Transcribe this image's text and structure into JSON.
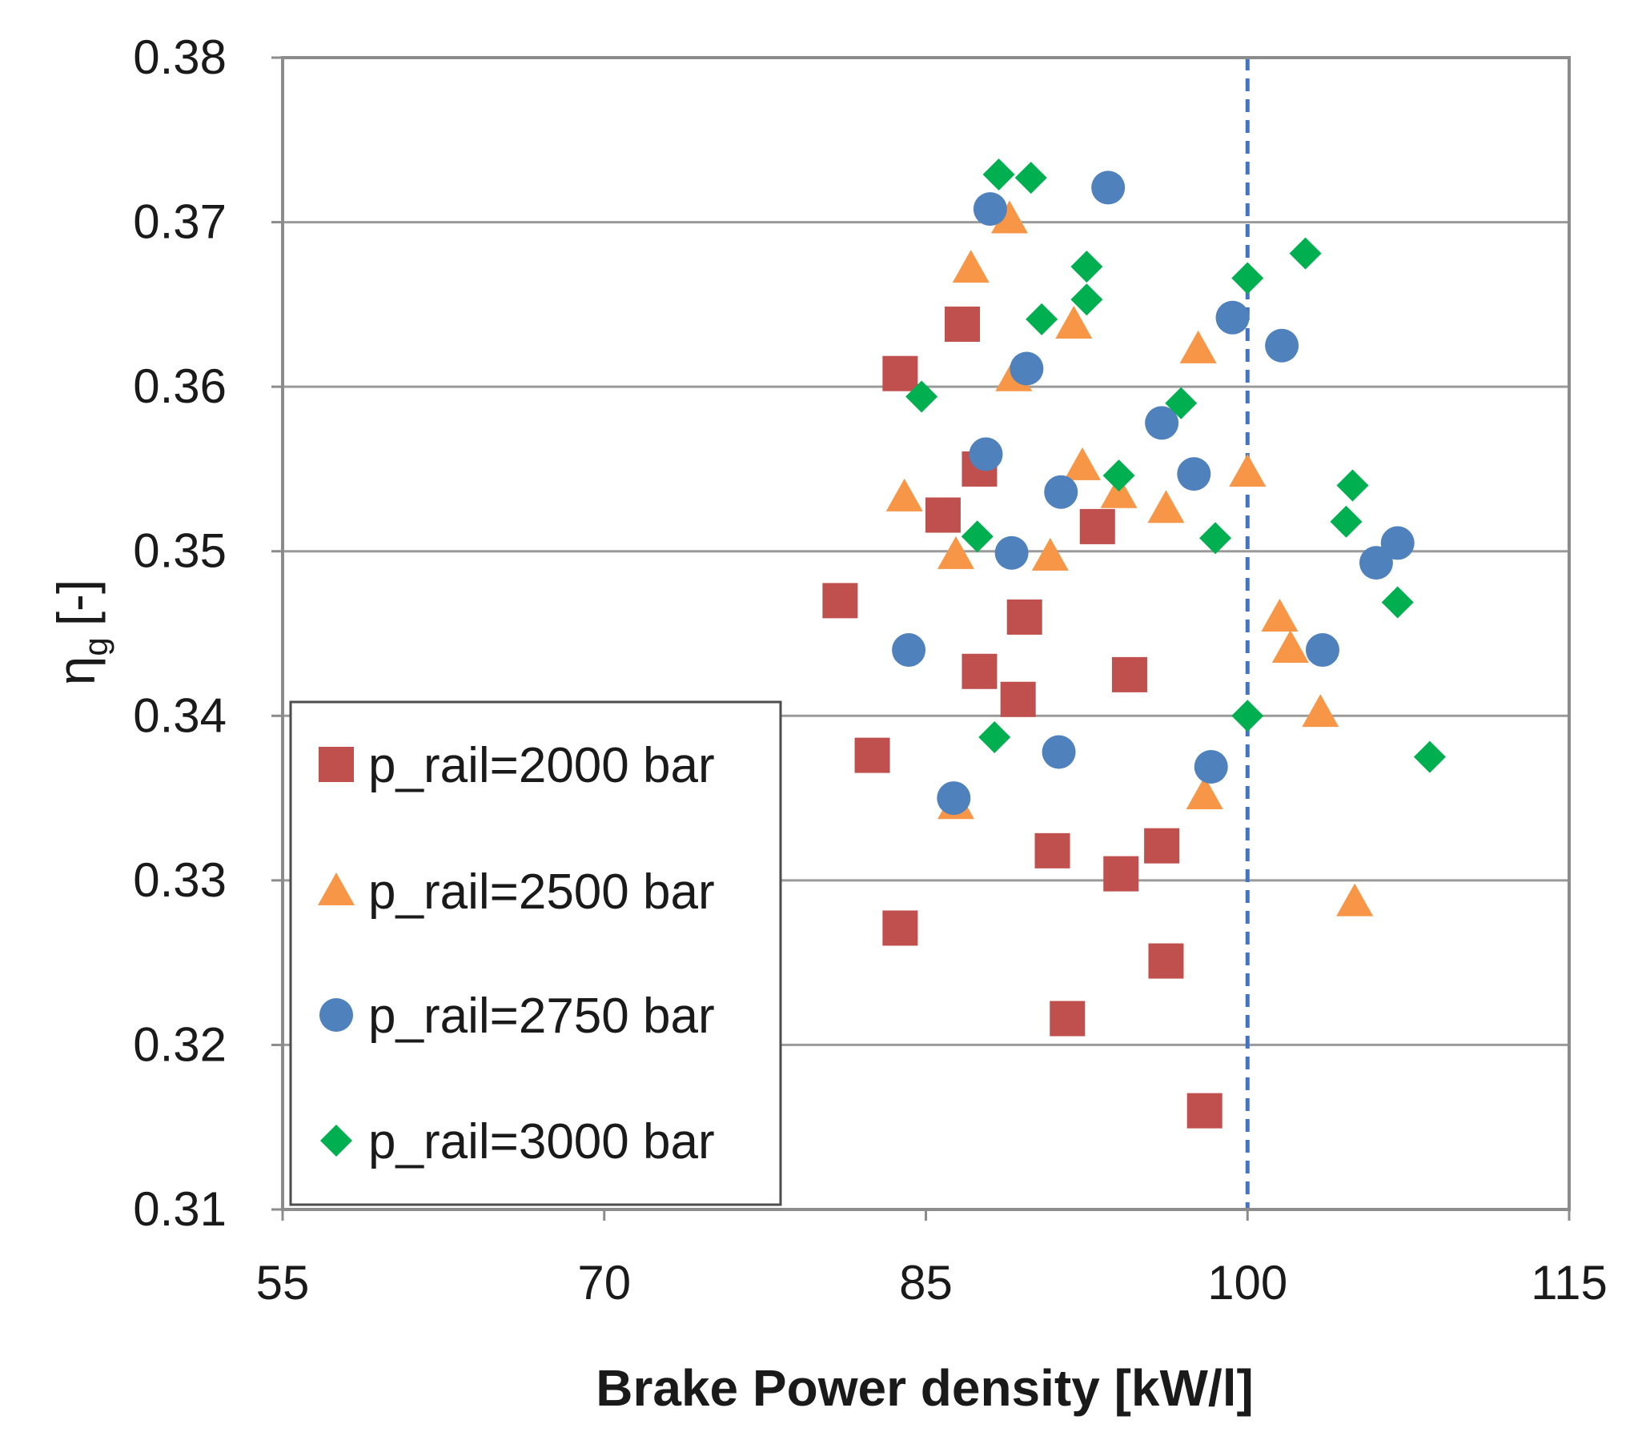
{
  "chart_data": {
    "type": "scatter",
    "title": "",
    "xlabel": "Brake Power density [kW/l]",
    "ylabel_symbol": "η",
    "ylabel_subscript": "g",
    "ylabel_unit": "[-]",
    "xlim": [
      55,
      115
    ],
    "ylim": [
      0.31,
      0.38
    ],
    "x_ticks": [
      55,
      70,
      85,
      100,
      115
    ],
    "x_tick_labels": [
      "55",
      "70",
      "85",
      "100",
      "115"
    ],
    "y_ticks": [
      0.31,
      0.32,
      0.33,
      0.34,
      0.35,
      0.36,
      0.37,
      0.38
    ],
    "y_tick_labels": [
      "0.31",
      "0.32",
      "0.33",
      "0.34",
      "0.35",
      "0.36",
      "0.37",
      "0.38"
    ],
    "grid": "horizontal",
    "legend_position": "bottom-left",
    "reference_line": {
      "orientation": "vertical",
      "x": 100,
      "style": "dashed",
      "color": "#4472c4"
    },
    "series": [
      {
        "name": "p_rail=2000 bar",
        "marker": "square",
        "color": "#c0504d",
        "points": [
          [
            86.7,
            0.3638
          ],
          [
            83.8,
            0.3608
          ],
          [
            87.5,
            0.355
          ],
          [
            85.8,
            0.3522
          ],
          [
            93.0,
            0.3515
          ],
          [
            81.0,
            0.347
          ],
          [
            89.6,
            0.346
          ],
          [
            87.5,
            0.3427
          ],
          [
            89.3,
            0.341
          ],
          [
            94.5,
            0.3425
          ],
          [
            82.5,
            0.3376
          ],
          [
            90.9,
            0.3318
          ],
          [
            94.1,
            0.3304
          ],
          [
            96.0,
            0.3321
          ],
          [
            83.8,
            0.3271
          ],
          [
            96.2,
            0.3251
          ],
          [
            91.6,
            0.3216
          ],
          [
            98.0,
            0.316
          ]
        ]
      },
      {
        "name": "p_rail=2500 bar",
        "marker": "triangle",
        "color": "#f79646",
        "points": [
          [
            88.9,
            0.3702
          ],
          [
            87.1,
            0.3672
          ],
          [
            91.9,
            0.3638
          ],
          [
            89.1,
            0.3606
          ],
          [
            97.7,
            0.3623
          ],
          [
            92.3,
            0.3552
          ],
          [
            84.0,
            0.3533
          ],
          [
            94.0,
            0.3535
          ],
          [
            96.2,
            0.3526
          ],
          [
            100.0,
            0.3548
          ],
          [
            86.4,
            0.3498
          ],
          [
            90.8,
            0.3497
          ],
          [
            101.5,
            0.346
          ],
          [
            102.0,
            0.3441
          ],
          [
            103.4,
            0.3402
          ],
          [
            86.4,
            0.3346
          ],
          [
            98.0,
            0.3352
          ],
          [
            105.0,
            0.3287
          ]
        ]
      },
      {
        "name": "p_rail=2750 bar",
        "marker": "circle",
        "color": "#4f81bd",
        "points": [
          [
            88.0,
            0.3708
          ],
          [
            93.5,
            0.3721
          ],
          [
            99.3,
            0.3642
          ],
          [
            101.6,
            0.3625
          ],
          [
            89.7,
            0.3611
          ],
          [
            96.0,
            0.3578
          ],
          [
            87.8,
            0.3559
          ],
          [
            97.5,
            0.3547
          ],
          [
            91.3,
            0.3536
          ],
          [
            89.0,
            0.3499
          ],
          [
            107.0,
            0.3505
          ],
          [
            106.0,
            0.3493
          ],
          [
            84.2,
            0.344
          ],
          [
            103.5,
            0.344
          ],
          [
            91.2,
            0.3378
          ],
          [
            98.3,
            0.3369
          ],
          [
            86.3,
            0.335
          ]
        ]
      },
      {
        "name": "p_rail=3000 bar",
        "marker": "diamond",
        "color": "#00b050",
        "points": [
          [
            88.4,
            0.3729
          ],
          [
            89.9,
            0.3727
          ],
          [
            102.7,
            0.3681
          ],
          [
            92.5,
            0.3673
          ],
          [
            100.0,
            0.3666
          ],
          [
            92.5,
            0.3653
          ],
          [
            90.4,
            0.3641
          ],
          [
            84.8,
            0.3594
          ],
          [
            96.9,
            0.359
          ],
          [
            94.0,
            0.3546
          ],
          [
            104.9,
            0.354
          ],
          [
            104.6,
            0.3518
          ],
          [
            87.4,
            0.3509
          ],
          [
            98.5,
            0.3508
          ],
          [
            107.0,
            0.3469
          ],
          [
            100.0,
            0.34
          ],
          [
            88.2,
            0.3387
          ],
          [
            108.5,
            0.3375
          ]
        ]
      }
    ]
  }
}
